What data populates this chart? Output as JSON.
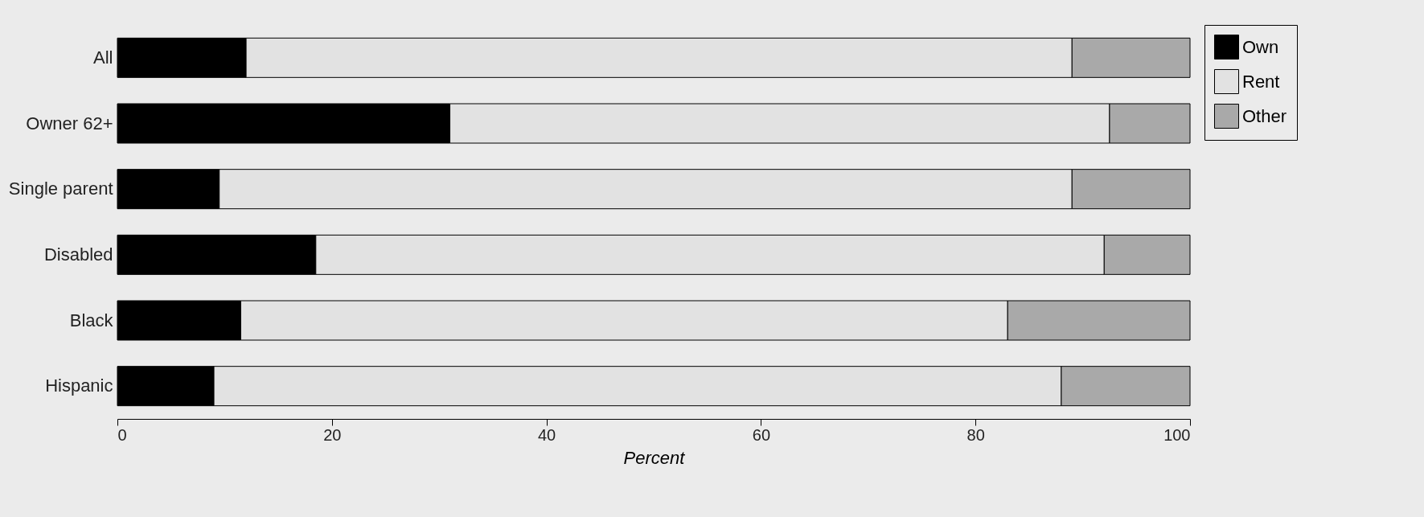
{
  "chart_data": {
    "type": "bar",
    "orientation": "horizontal",
    "stacked": true,
    "xlabel": "Percent",
    "categories": [
      "All",
      "Owner 62+",
      "Single parent",
      "Disabled",
      "Black",
      "Hispanic"
    ],
    "series": [
      {
        "name": "Own",
        "color": "#000000",
        "values": [
          12,
          31,
          9.5,
          18.5,
          11.5,
          9
        ]
      },
      {
        "name": "Rent",
        "color": "#e2e2e2",
        "values": [
          77,
          61.5,
          79.5,
          73.5,
          71.5,
          79
        ]
      },
      {
        "name": "Other",
        "color": "#a9a9a9",
        "values": [
          11,
          7.5,
          11,
          8,
          17,
          12
        ]
      }
    ],
    "xlim": [
      0,
      100
    ],
    "xticks": [
      0,
      20,
      40,
      60,
      80,
      100
    ],
    "grid": false,
    "legend": "right"
  }
}
